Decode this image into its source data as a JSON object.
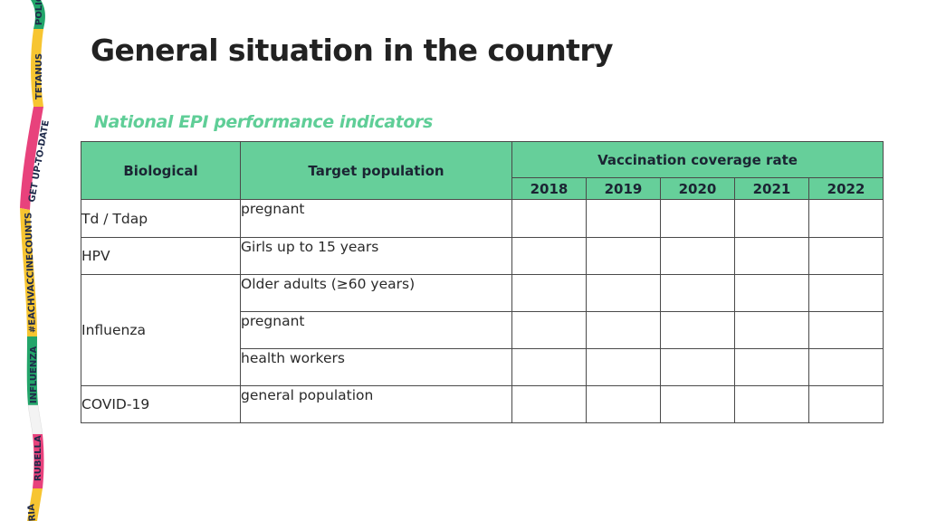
{
  "slide": {
    "title": "General situation in the country",
    "subtitle": "National EPI performance indicators"
  },
  "ribbon": {
    "labels": [
      "POLIO",
      "TETANUS",
      "GET UP-TO-DATE",
      "#EACHVACCINECOUNTS",
      "INFLUENZA",
      "RUBELLA",
      "RIA"
    ],
    "colors": [
      "#e8427c",
      "#f7c531",
      "#23a56a",
      "#4fb7e8",
      "#ffffff"
    ]
  },
  "table": {
    "headers": {
      "biological": "Biological",
      "target_population": "Target population",
      "coverage": "Vaccination coverage rate",
      "years": [
        "2018",
        "2019",
        "2020",
        "2021",
        "2022"
      ]
    },
    "rows": [
      {
        "biological": "Td / Tdap",
        "target": "pregnant",
        "values": [
          "",
          "",
          "",
          "",
          ""
        ]
      },
      {
        "biological": "HPV",
        "target": "Girls up to 15 years",
        "values": [
          "",
          "",
          "",
          "",
          ""
        ]
      },
      {
        "biological": "Influenza",
        "target": "Older adults (≥60 years)",
        "values": [
          "",
          "",
          "",
          "",
          ""
        ]
      },
      {
        "biological": "",
        "target": "pregnant",
        "values": [
          "",
          "",
          "",
          "",
          ""
        ]
      },
      {
        "biological": "",
        "target": "health workers",
        "values": [
          "",
          "",
          "",
          "",
          ""
        ]
      },
      {
        "biological": "COVID-19",
        "target": "general population",
        "values": [
          "",
          "",
          "",
          "",
          ""
        ]
      }
    ]
  }
}
